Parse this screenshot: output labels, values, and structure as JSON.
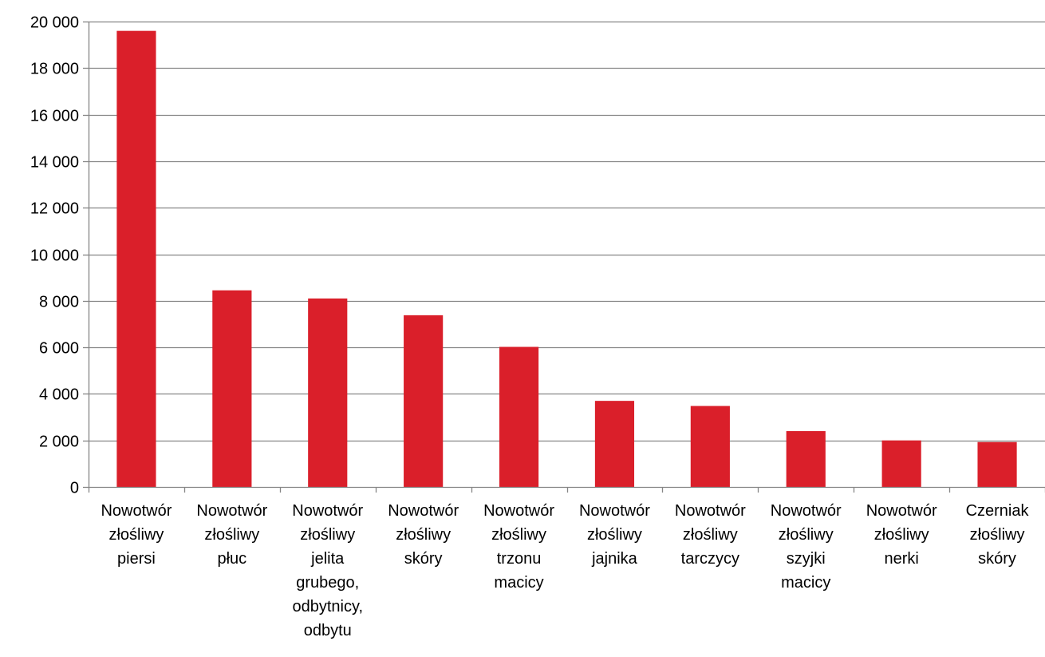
{
  "chart_data": {
    "type": "bar",
    "categories": [
      [
        "Nowotwór",
        "złośliwy",
        "piersi"
      ],
      [
        "Nowotwór",
        "złośliwy",
        "płuc"
      ],
      [
        "Nowotwór",
        "złośliwy",
        "jelita",
        "grubego,",
        "odbytnicy,",
        "odbytu"
      ],
      [
        "Nowotwór",
        "złośliwy",
        "skóry"
      ],
      [
        "Nowotwór",
        "złośliwy",
        "trzonu",
        "macicy"
      ],
      [
        "Nowotwór",
        "złośliwy",
        "jajnika"
      ],
      [
        "Nowotwór",
        "złośliwy",
        "tarczycy"
      ],
      [
        "Nowotwór",
        "złośliwy",
        "szyjki",
        "macicy"
      ],
      [
        "Nowotwór",
        "złośliwy",
        "nerki"
      ],
      [
        "Czerniak",
        "złośliwy",
        "skóry"
      ]
    ],
    "values": [
      19600,
      8450,
      8100,
      7380,
      6020,
      3700,
      3480,
      2400,
      2000,
      1930
    ],
    "ylim": [
      0,
      20000
    ],
    "yticks": [
      0,
      2000,
      4000,
      6000,
      8000,
      10000,
      12000,
      14000,
      16000,
      18000,
      20000
    ],
    "ytick_labels": [
      "0",
      "2 000",
      "4 000",
      "6 000",
      "8 000",
      "10 000",
      "12 000",
      "14 000",
      "16 000",
      "18 000",
      "20 000"
    ],
    "grid": true,
    "legend": "none",
    "colors": {
      "bar": "#DA1F2A",
      "grid": "#868686",
      "axis": "#868686",
      "text": "#000000"
    }
  }
}
